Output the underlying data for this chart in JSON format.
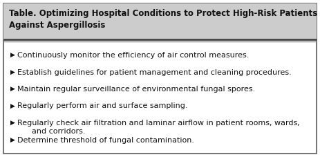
{
  "title_line1": "Table. Optimizing Hospital Conditions to Protect High-Risk Patients",
  "title_line2": "Against Aspergillosis",
  "title_bg_color": "#cccccc",
  "body_bg_color": "#ffffff",
  "outer_border_color": "#777777",
  "sep_line1_color": "#444444",
  "sep_line2_color": "#888888",
  "title_font_size": 8.5,
  "body_font_size": 8.0,
  "bullet_char": "▶",
  "bullet_items": [
    "Continuously monitor the efficiency of air control measures.",
    "Establish guidelines for patient management and cleaning procedures.",
    "Maintain regular surveillance of environmental fungal spores.",
    "Regularly perform air and surface sampling.",
    "Regularly check air filtration and laminar airflow in patient rooms, wards,\n      and corridors.",
    "Determine threshold of fungal contamination."
  ],
  "fig_width": 4.63,
  "fig_height": 2.27,
  "dpi": 100
}
